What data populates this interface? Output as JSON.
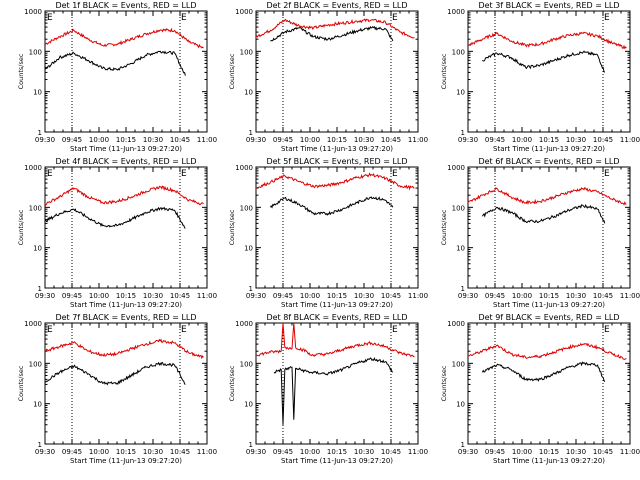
{
  "figure": {
    "background": "#ffffff"
  },
  "colors": {
    "events": "#000000",
    "lld": "#dd0000",
    "axis": "#000000"
  },
  "chart_data": [
    {
      "type": "line",
      "title": "Det 1f BLACK = Events, RED = LLD",
      "xlabel": "Start Time (11-Jun-13 09:27:20)",
      "ylabel": "Counts/sec",
      "xticks": [
        "09:30",
        "09:45",
        "10:00",
        "10:15",
        "10:30",
        "10:45",
        "11:00"
      ],
      "yticks": [
        "1",
        "10",
        "100",
        "1000"
      ],
      "yscale": "log",
      "ylim": [
        1,
        1000
      ],
      "markers": [
        {
          "x": "09:45",
          "label": ""
        },
        {
          "x": "10:45",
          "label": "E"
        }
      ],
      "corner_label": "E",
      "series": [
        {
          "color": "red",
          "x": [
            "09:30",
            "09:38",
            "09:46",
            "09:54",
            "10:02",
            "10:10",
            "10:18",
            "10:26",
            "10:34",
            "10:42",
            "10:50",
            "10:58"
          ],
          "y": [
            150,
            230,
            330,
            200,
            140,
            150,
            200,
            270,
            340,
            330,
            170,
            120
          ]
        },
        {
          "color": "black",
          "x": [
            "09:30",
            "09:38",
            "09:46",
            "09:54",
            "10:02",
            "10:10",
            "10:18",
            "10:26",
            "10:34",
            "10:42",
            "10:48"
          ],
          "y": [
            35,
            70,
            90,
            60,
            38,
            35,
            50,
            80,
            100,
            90,
            25
          ]
        }
      ]
    },
    {
      "type": "line",
      "title": "Det 2f BLACK = Events, RED = LLD",
      "xlabel": "Start Time (11-Jun-13 09:27:20)",
      "ylabel": "Counts/sec",
      "xticks": [
        "09:30",
        "09:45",
        "10:00",
        "10:15",
        "10:30",
        "10:45",
        "11:00"
      ],
      "yticks": [
        "1",
        "10",
        "100",
        "1000"
      ],
      "yscale": "log",
      "ylim": [
        1,
        1000
      ],
      "markers": [
        {
          "x": "09:45",
          "label": ""
        },
        {
          "x": "10:45",
          "label": "E"
        }
      ],
      "corner_label": "",
      "series": [
        {
          "color": "red",
          "x": [
            "09:30",
            "09:38",
            "09:46",
            "09:54",
            "10:02",
            "10:10",
            "10:18",
            "10:26",
            "10:34",
            "10:42",
            "10:50",
            "10:58"
          ],
          "y": [
            230,
            330,
            600,
            430,
            380,
            450,
            500,
            560,
            600,
            520,
            300,
            220
          ]
        },
        {
          "color": "black",
          "x": [
            "09:38",
            "09:46",
            "09:54",
            "10:02",
            "10:10",
            "10:18",
            "10:26",
            "10:34",
            "10:42",
            "10:46"
          ],
          "y": [
            180,
            300,
            380,
            230,
            200,
            250,
            320,
            380,
            360,
            180
          ]
        }
      ]
    },
    {
      "type": "line",
      "title": "Det 3f BLACK = Events, RED = LLD",
      "xlabel": "Start Time (11-Jun-13 09:27:20)",
      "ylabel": "Counts/sec",
      "xticks": [
        "09:30",
        "09:45",
        "10:00",
        "10:15",
        "10:30",
        "10:45",
        "11:00"
      ],
      "yticks": [
        "1",
        "10",
        "100",
        "1000"
      ],
      "yscale": "log",
      "ylim": [
        1,
        1000
      ],
      "markers": [
        {
          "x": "09:45",
          "label": ""
        },
        {
          "x": "10:45",
          "label": "E"
        }
      ],
      "corner_label": "",
      "series": [
        {
          "color": "red",
          "x": [
            "09:30",
            "09:38",
            "09:46",
            "09:54",
            "10:02",
            "10:10",
            "10:18",
            "10:26",
            "10:34",
            "10:42",
            "10:50",
            "10:58"
          ],
          "y": [
            140,
            200,
            280,
            180,
            140,
            150,
            200,
            250,
            280,
            240,
            160,
            120
          ]
        },
        {
          "color": "black",
          "x": [
            "09:38",
            "09:46",
            "09:54",
            "10:02",
            "10:10",
            "10:18",
            "10:26",
            "10:34",
            "10:42",
            "10:46"
          ],
          "y": [
            60,
            90,
            70,
            40,
            45,
            60,
            80,
            95,
            80,
            30
          ]
        }
      ]
    },
    {
      "type": "line",
      "title": "Det 4f BLACK = Events, RED = LLD",
      "xlabel": "Start Time (11-Jun-13 09:27:20)",
      "ylabel": "Counts/sec",
      "xticks": [
        "09:30",
        "09:45",
        "10:00",
        "10:15",
        "10:30",
        "10:45",
        "11:00"
      ],
      "yticks": [
        "1",
        "10",
        "100",
        "1000"
      ],
      "yscale": "log",
      "ylim": [
        1,
        1000
      ],
      "markers": [
        {
          "x": "09:45",
          "label": ""
        },
        {
          "x": "10:45",
          "label": "E"
        }
      ],
      "corner_label": "E",
      "series": [
        {
          "color": "red",
          "x": [
            "09:30",
            "09:38",
            "09:46",
            "09:54",
            "10:02",
            "10:10",
            "10:18",
            "10:26",
            "10:34",
            "10:42",
            "10:50",
            "10:58"
          ],
          "y": [
            120,
            180,
            300,
            180,
            130,
            140,
            180,
            250,
            320,
            260,
            150,
            120
          ]
        },
        {
          "color": "black",
          "x": [
            "09:30",
            "09:38",
            "09:46",
            "09:54",
            "10:02",
            "10:10",
            "10:18",
            "10:26",
            "10:34",
            "10:42",
            "10:48"
          ],
          "y": [
            45,
            70,
            90,
            55,
            35,
            35,
            50,
            75,
            95,
            85,
            30
          ]
        }
      ]
    },
    {
      "type": "line",
      "title": "Det 5f BLACK = Events, RED = LLD",
      "xlabel": "Start Time (11-Jun-13 09:27:20)",
      "ylabel": "Counts/sec",
      "xticks": [
        "09:30",
        "09:45",
        "10:00",
        "10:15",
        "10:30",
        "10:45",
        "11:00"
      ],
      "yticks": [
        "1",
        "10",
        "100",
        "1000"
      ],
      "yscale": "log",
      "ylim": [
        1,
        1000
      ],
      "markers": [
        {
          "x": "09:45",
          "label": ""
        },
        {
          "x": "10:45",
          "label": "E"
        }
      ],
      "corner_label": "",
      "series": [
        {
          "color": "red",
          "x": [
            "09:30",
            "09:38",
            "09:46",
            "09:54",
            "10:02",
            "10:10",
            "10:18",
            "10:26",
            "10:34",
            "10:42",
            "10:50",
            "10:58"
          ],
          "y": [
            300,
            420,
            600,
            430,
            330,
            350,
            420,
            550,
            650,
            520,
            340,
            300
          ]
        },
        {
          "color": "black",
          "x": [
            "09:38",
            "09:46",
            "09:54",
            "10:02",
            "10:10",
            "10:18",
            "10:26",
            "10:34",
            "10:42",
            "10:46"
          ],
          "y": [
            100,
            170,
            120,
            70,
            70,
            90,
            130,
            180,
            150,
            100
          ]
        }
      ]
    },
    {
      "type": "line",
      "title": "Det 6f BLACK = Events, RED = LLD",
      "xlabel": "Start Time (11-Jun-13 09:27:20)",
      "ylabel": "Counts/sec",
      "xticks": [
        "09:30",
        "09:45",
        "10:00",
        "10:15",
        "10:30",
        "10:45",
        "11:00"
      ],
      "yticks": [
        "1",
        "10",
        "100",
        "1000"
      ],
      "yscale": "log",
      "ylim": [
        1,
        1000
      ],
      "markers": [
        {
          "x": "09:45",
          "label": ""
        },
        {
          "x": "10:45",
          "label": "E"
        }
      ],
      "corner_label": "",
      "series": [
        {
          "color": "red",
          "x": [
            "09:30",
            "09:38",
            "09:46",
            "09:54",
            "10:02",
            "10:10",
            "10:18",
            "10:26",
            "10:34",
            "10:42",
            "10:50",
            "10:58"
          ],
          "y": [
            130,
            200,
            290,
            180,
            130,
            140,
            180,
            240,
            290,
            240,
            160,
            120
          ]
        },
        {
          "color": "black",
          "x": [
            "09:38",
            "09:46",
            "09:54",
            "10:02",
            "10:10",
            "10:18",
            "10:26",
            "10:34",
            "10:42",
            "10:46"
          ],
          "y": [
            60,
            100,
            75,
            45,
            45,
            60,
            85,
            110,
            90,
            40
          ]
        }
      ]
    },
    {
      "type": "line",
      "title": "Det 7f BLACK = Events, RED = LLD",
      "xlabel": "Start Time (11-Jun-13 09:27:20)",
      "ylabel": "Counts/sec",
      "xticks": [
        "09:30",
        "09:45",
        "10:00",
        "10:15",
        "10:30",
        "10:45",
        "11:00"
      ],
      "yticks": [
        "1",
        "10",
        "100",
        "1000"
      ],
      "yscale": "log",
      "ylim": [
        1,
        1000
      ],
      "markers": [
        {
          "x": "09:45",
          "label": ""
        },
        {
          "x": "10:45",
          "label": "E"
        }
      ],
      "corner_label": "E",
      "series": [
        {
          "color": "red",
          "x": [
            "09:30",
            "09:38",
            "09:46",
            "09:54",
            "10:02",
            "10:10",
            "10:18",
            "10:26",
            "10:34",
            "10:42",
            "10:50",
            "10:58"
          ],
          "y": [
            200,
            260,
            330,
            200,
            160,
            170,
            230,
            300,
            360,
            320,
            180,
            140
          ]
        },
        {
          "color": "black",
          "x": [
            "09:30",
            "09:38",
            "09:46",
            "09:54",
            "10:02",
            "10:10",
            "10:18",
            "10:26",
            "10:34",
            "10:42",
            "10:48"
          ],
          "y": [
            35,
            60,
            85,
            55,
            32,
            32,
            50,
            80,
            100,
            90,
            30
          ]
        }
      ]
    },
    {
      "type": "line",
      "title": "Det 8f BLACK = Events, RED = LLD",
      "xlabel": "Start Time (11-Jun-13 09:27:20)",
      "ylabel": "Counts/sec",
      "xticks": [
        "09:30",
        "09:45",
        "10:00",
        "10:15",
        "10:30",
        "10:45",
        "11:00"
      ],
      "yticks": [
        "1",
        "10",
        "100",
        "1000"
      ],
      "yscale": "log",
      "ylim": [
        1,
        1000
      ],
      "markers": [
        {
          "x": "09:45",
          "label": ""
        },
        {
          "x": "10:45",
          "label": "E"
        }
      ],
      "corner_label": "",
      "series": [
        {
          "color": "red",
          "x": [
            "09:30",
            "09:38",
            "09:44",
            "09:45",
            "09:46",
            "09:50",
            "09:51",
            "09:52",
            "09:58",
            "10:00",
            "10:10",
            "10:18",
            "10:26",
            "10:34",
            "10:42",
            "10:50",
            "10:58"
          ],
          "y": [
            160,
            190,
            200,
            1000,
            250,
            230,
            1000,
            250,
            200,
            160,
            170,
            220,
            280,
            320,
            260,
            180,
            150
          ]
        },
        {
          "color": "black",
          "x": [
            "09:40",
            "09:44",
            "09:45",
            "09:46",
            "09:50",
            "09:51",
            "09:52",
            "10:00",
            "10:10",
            "10:18",
            "10:26",
            "10:34",
            "10:42",
            "10:46"
          ],
          "y": [
            60,
            70,
            3,
            70,
            80,
            4,
            75,
            60,
            55,
            70,
            100,
            130,
            110,
            60
          ]
        }
      ]
    },
    {
      "type": "line",
      "title": "Det 9f BLACK = Events, RED = LLD",
      "xlabel": "Start Time (11-Jun-13 09:27:20)",
      "ylabel": "Counts/sec",
      "xticks": [
        "09:30",
        "09:45",
        "10:00",
        "10:15",
        "10:30",
        "10:45",
        "11:00"
      ],
      "yticks": [
        "1",
        "10",
        "100",
        "1000"
      ],
      "yscale": "log",
      "ylim": [
        1,
        1000
      ],
      "markers": [
        {
          "x": "09:45",
          "label": ""
        },
        {
          "x": "10:45",
          "label": "E"
        }
      ],
      "corner_label": "",
      "series": [
        {
          "color": "red",
          "x": [
            "09:30",
            "09:38",
            "09:46",
            "09:54",
            "10:02",
            "10:10",
            "10:18",
            "10:26",
            "10:34",
            "10:42",
            "10:50",
            "10:58"
          ],
          "y": [
            150,
            200,
            280,
            170,
            140,
            150,
            190,
            250,
            300,
            250,
            170,
            130
          ]
        },
        {
          "color": "black",
          "x": [
            "09:38",
            "09:46",
            "09:54",
            "10:02",
            "10:10",
            "10:18",
            "10:26",
            "10:34",
            "10:42",
            "10:46"
          ],
          "y": [
            60,
            90,
            70,
            40,
            40,
            55,
            80,
            100,
            90,
            35
          ]
        }
      ]
    }
  ]
}
